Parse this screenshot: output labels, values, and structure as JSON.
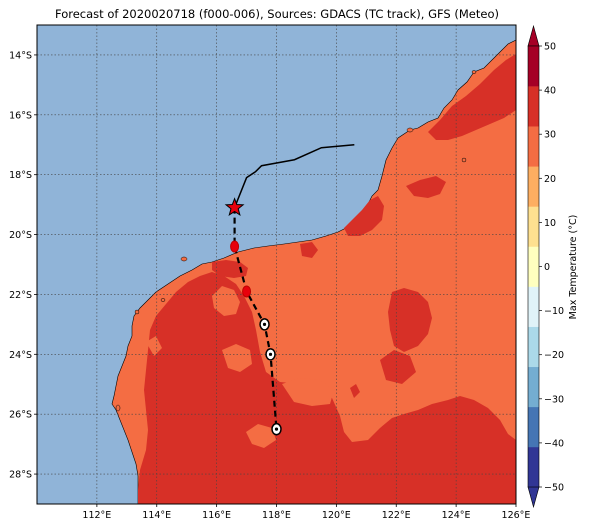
{
  "map": {
    "title": "Forecast of 2020020718 (f000-006), Sources: GDACS (TC track), GFS (Meteo)",
    "lon_range": [
      110.0,
      126.0
    ],
    "lat_range": [
      -29.0,
      -13.0
    ],
    "lon_ticks": [
      "112°E",
      "114°E",
      "116°E",
      "118°E",
      "120°E",
      "122°E",
      "124°E",
      "126°E"
    ],
    "lon_tick_values": [
      112,
      114,
      116,
      118,
      120,
      122,
      124,
      126
    ],
    "lat_ticks": [
      "14°S",
      "16°S",
      "18°S",
      "20°S",
      "22°S",
      "24°S",
      "26°S",
      "28°S"
    ],
    "lat_tick_values": [
      -14,
      -16,
      -18,
      -20,
      -22,
      -24,
      -26,
      -28
    ],
    "grid": true,
    "ocean_color": "#90b4d8",
    "land_color_warm": "#f46d43",
    "land_color_hot": "#d73027",
    "track_past": [
      [
        120.6,
        -17.0
      ],
      [
        119.5,
        -17.1
      ],
      [
        118.6,
        -17.5
      ],
      [
        117.5,
        -17.7
      ],
      [
        117.3,
        -17.9
      ],
      [
        117.0,
        -18.1
      ],
      [
        116.6,
        -19.1
      ]
    ],
    "current_position": [
      116.6,
      -19.1
    ],
    "track_forecast": [
      [
        116.6,
        -19.1
      ],
      [
        116.6,
        -20.4
      ],
      [
        117.0,
        -21.9
      ],
      [
        117.6,
        -23.0
      ],
      [
        117.8,
        -24.0
      ],
      [
        118.0,
        -26.5
      ]
    ],
    "forecast_points": [
      {
        "lon": 116.6,
        "lat": -20.4,
        "style": "red"
      },
      {
        "lon": 117.0,
        "lat": -21.9,
        "style": "red"
      },
      {
        "lon": 117.6,
        "lat": -23.0,
        "style": "white"
      },
      {
        "lon": 117.8,
        "lat": -24.0,
        "style": "white"
      },
      {
        "lon": 118.0,
        "lat": -26.5,
        "style": "white"
      }
    ]
  },
  "colorbar": {
    "label": "Max Temperature (°C)",
    "ticks": [
      "50",
      "40",
      "30",
      "20",
      "10",
      "0",
      "−10",
      "−20",
      "−30",
      "−40",
      "−50"
    ],
    "tick_values": [
      50,
      40,
      30,
      20,
      10,
      0,
      -10,
      -20,
      -30,
      -40,
      -50
    ],
    "range": [
      -50,
      50
    ],
    "colors": [
      "#313695",
      "#4575b4",
      "#74add1",
      "#abd9e9",
      "#e0f3f8",
      "#ffffbf",
      "#fee090",
      "#fdae61",
      "#f46d43",
      "#d73027",
      "#a50026"
    ]
  }
}
